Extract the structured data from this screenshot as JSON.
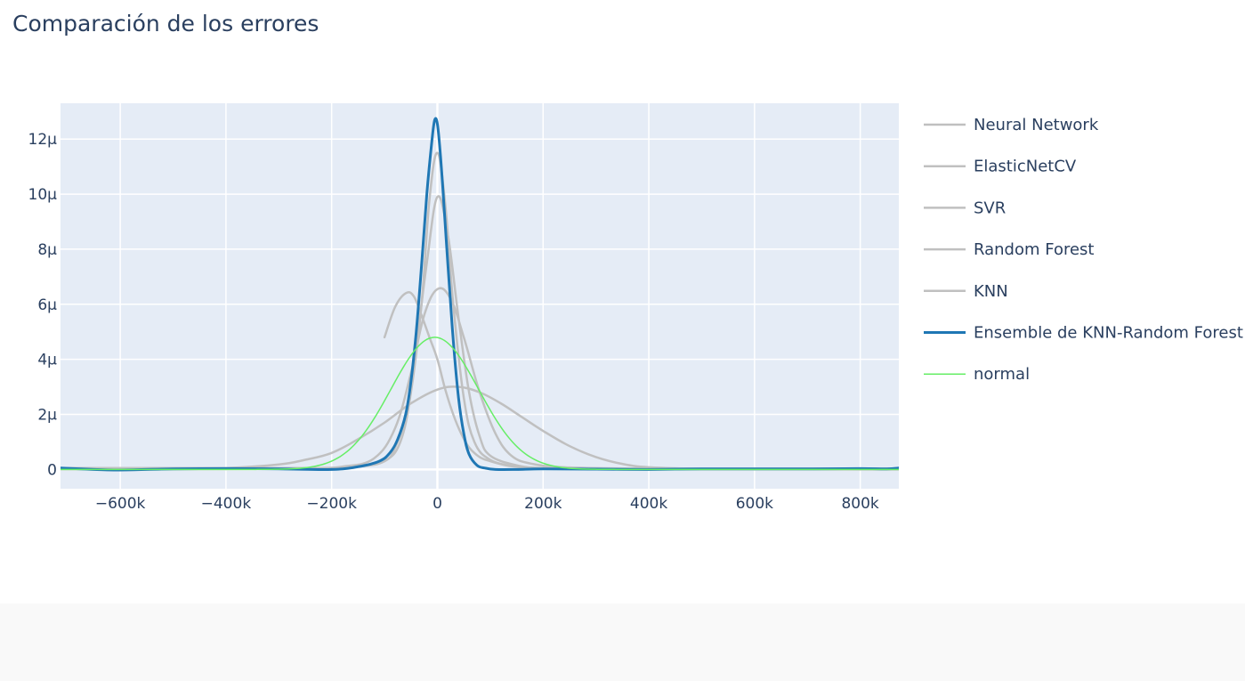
{
  "chart_data": {
    "type": "line",
    "title": "Comparación de los errores",
    "xlabel": "",
    "ylabel": "",
    "xlim": [
      -713000,
      873000
    ],
    "ylim": [
      -7e-07,
      1.33e-05
    ],
    "x_ticks": [
      {
        "value": -600000,
        "label": "−600k"
      },
      {
        "value": -400000,
        "label": "−400k"
      },
      {
        "value": -200000,
        "label": "−200k"
      },
      {
        "value": 0,
        "label": "0"
      },
      {
        "value": 200000,
        "label": "200k"
      },
      {
        "value": 400000,
        "label": "400k"
      },
      {
        "value": 600000,
        "label": "600k"
      },
      {
        "value": 800000,
        "label": "800k"
      }
    ],
    "y_ticks": [
      {
        "value": 0,
        "label": "0"
      },
      {
        "value": 2e-06,
        "label": "2μ"
      },
      {
        "value": 4e-06,
        "label": "4μ"
      },
      {
        "value": 6e-06,
        "label": "6μ"
      },
      {
        "value": 8e-06,
        "label": "8μ"
      },
      {
        "value": 1e-05,
        "label": "10μ"
      },
      {
        "value": 1.2e-05,
        "label": "12μ"
      }
    ],
    "grid": true,
    "legend_position": "right",
    "series": [
      {
        "name": "Neural Network",
        "color": "#c0c0c0",
        "width": 2.5,
        "x": [
          -100000,
          -80000,
          -60000,
          -45000,
          -30000,
          -15000,
          0,
          15000,
          30000,
          45000,
          60000,
          80000,
          100000,
          130000,
          160000,
          200000,
          260000,
          330000,
          420000,
          520000,
          650000,
          800000,
          873000
        ],
        "y": [
          4.8e-06,
          5.9e-06,
          6.4e-06,
          6.3e-06,
          5.6e-06,
          4.8e-06,
          4e-06,
          2.9e-06,
          2e-06,
          1.3e-06,
          8e-07,
          4.5e-07,
          3e-07,
          1.5e-07,
          8e-08,
          4e-08,
          2e-08,
          1e-08,
          5e-09,
          3e-09,
          2e-09,
          1e-09,
          1e-09
        ]
      },
      {
        "name": "ElasticNetCV",
        "color": "#c0c0c0",
        "width": 2.5,
        "x": [
          -713000,
          -600000,
          -500000,
          -400000,
          -300000,
          -250000,
          -200000,
          -150000,
          -100000,
          -50000,
          0,
          40000,
          80000,
          120000,
          160000,
          200000,
          250000,
          300000,
          350000,
          400000,
          500000,
          600000,
          700000,
          800000,
          873000
        ],
        "y": [
          2e-08,
          2e-08,
          2e-08,
          5e-08,
          1.8e-07,
          3.5e-07,
          6e-07,
          1.1e-06,
          1.7e-06,
          2.4e-06,
          2.9e-06,
          3e-06,
          2.8e-06,
          2.4e-06,
          1.9e-06,
          1.4e-06,
          8.5e-07,
          4.5e-07,
          2e-07,
          8e-08,
          2e-08,
          1e-08,
          1e-08,
          1e-08,
          1e-08
        ]
      },
      {
        "name": "SVR",
        "color": "#c0c0c0",
        "width": 2.5,
        "x": [
          -713000,
          -500000,
          -300000,
          -200000,
          -150000,
          -100000,
          -70000,
          -50000,
          -30000,
          -15000,
          0,
          15000,
          30000,
          50000,
          70000,
          100000,
          150000,
          200000,
          300000,
          500000,
          700000,
          873000
        ],
        "y": [
          1e-08,
          1e-08,
          2e-08,
          5e-08,
          1e-07,
          3e-07,
          1e-06,
          2.8e-06,
          6e-06,
          9.8e-06,
          1.15e-05,
          9.6e-06,
          6e-06,
          2.6e-06,
          1e-06,
          3.5e-07,
          1e-07,
          4e-08,
          1e-08,
          5e-09,
          3e-09,
          3e-09
        ]
      },
      {
        "name": "Random Forest",
        "color": "#c0c0c0",
        "width": 2.5,
        "x": [
          -713000,
          -500000,
          -300000,
          -200000,
          -150000,
          -100000,
          -80000,
          -60000,
          -40000,
          -20000,
          0,
          20000,
          40000,
          60000,
          80000,
          100000,
          150000,
          200000,
          300000,
          500000,
          700000,
          873000
        ],
        "y": [
          1e-08,
          1e-08,
          2e-08,
          5e-08,
          1e-07,
          3e-07,
          8e-07,
          2e-06,
          4.5e-06,
          7.5e-06,
          9.9e-06,
          8.5e-06,
          5.5e-06,
          2.8e-06,
          1.2e-06,
          5e-07,
          1.5e-07,
          5e-08,
          2e-08,
          1e-08,
          1e-08,
          1e-08
        ]
      },
      {
        "name": "KNN",
        "color": "#c0c0c0",
        "width": 2.5,
        "x": [
          -713000,
          -600000,
          -400000,
          -250000,
          -180000,
          -120000,
          -80000,
          -50000,
          -25000,
          0,
          25000,
          50000,
          80000,
          110000,
          140000,
          180000,
          250000,
          400000,
          600000,
          800000,
          873000
        ],
        "y": [
          5e-08,
          5e-08,
          5e-08,
          5e-08,
          1e-07,
          4e-07,
          1.5e-06,
          3.5e-06,
          5.6e-06,
          6.55e-06,
          6.2e-06,
          4.8e-06,
          2.8e-06,
          1.3e-06,
          5e-07,
          2e-07,
          7e-08,
          3e-08,
          3e-08,
          3e-08,
          3e-08
        ]
      },
      {
        "name": "Ensemble de KNN-Random Forest",
        "color": "#1f77b4",
        "width": 3,
        "x": [
          -713000,
          -650000,
          -600000,
          -500000,
          -400000,
          -300000,
          -200000,
          -150000,
          -110000,
          -90000,
          -75000,
          -60000,
          -50000,
          -40000,
          -30000,
          -20000,
          -10000,
          -5000,
          0,
          5000,
          10000,
          20000,
          30000,
          40000,
          50000,
          60000,
          75000,
          90000,
          110000,
          150000,
          200000,
          300000,
          400000,
          500000,
          600000,
          700000,
          800000,
          850000,
          873000
        ],
        "y": [
          5e-08,
          0.0,
          -2e-08,
          2e-08,
          3e-08,
          2e-08,
          0.0,
          1e-07,
          3e-07,
          6e-07,
          1.1e-06,
          2e-06,
          3.2e-06,
          5e-06,
          7.4e-06,
          1e-05,
          1.2e-05,
          1.27e-05,
          1.255e-05,
          1.16e-05,
          1.03e-05,
          7.4e-06,
          4.7e-06,
          2.6e-06,
          1.3e-06,
          5.5e-07,
          1.5e-07,
          5e-08,
          0.0,
          0.0,
          2e-08,
          1e-08,
          0.0,
          2e-08,
          2e-08,
          2e-08,
          3e-08,
          2e-08,
          5e-08
        ]
      },
      {
        "name": "normal",
        "color": "#66ee66",
        "width": 1.5,
        "gaussian": {
          "mean": -5000,
          "sd": 83000,
          "amplitude": 4.8e-06
        },
        "x_range": [
          -713000,
          873000
        ]
      }
    ]
  }
}
